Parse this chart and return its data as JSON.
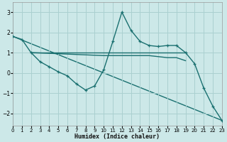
{
  "background_color": "#cce8e8",
  "grid_color": "#aad0d0",
  "line_color": "#1a7070",
  "xlabel": "Humidex (Indice chaleur)",
  "xlim": [
    0,
    23
  ],
  "ylim": [
    -2.6,
    3.5
  ],
  "yticks": [
    -2,
    -1,
    0,
    1,
    2,
    3
  ],
  "xticks": [
    0,
    1,
    2,
    3,
    4,
    5,
    6,
    7,
    8,
    9,
    10,
    11,
    12,
    13,
    14,
    15,
    16,
    17,
    18,
    19,
    20,
    21,
    22,
    23
  ],
  "curve_x": [
    0,
    1,
    2,
    3,
    4,
    5,
    6,
    7,
    8,
    9,
    10,
    11,
    12,
    13,
    14,
    15,
    16,
    17,
    18,
    19,
    20,
    21,
    22,
    23
  ],
  "curve_y": [
    1.8,
    1.65,
    1.0,
    0.55,
    0.3,
    0.05,
    -0.15,
    -0.55,
    -0.85,
    -0.65,
    0.15,
    1.55,
    3.0,
    2.1,
    1.55,
    1.35,
    1.3,
    1.35,
    1.35,
    1.0,
    0.45,
    -0.75,
    -1.65,
    -2.35
  ],
  "hline_x": [
    2,
    19
  ],
  "hline_y": [
    1.0,
    1.0
  ],
  "midline_x": [
    2,
    10,
    11,
    12,
    13,
    14,
    15,
    16,
    17,
    18,
    19
  ],
  "midline_y": [
    1.0,
    0.85,
    0.85,
    0.85,
    0.85,
    0.85,
    0.85,
    0.8,
    0.75,
    0.75,
    0.6
  ],
  "diagline_x": [
    0,
    23
  ],
  "diagline_y": [
    1.8,
    -2.35
  ]
}
